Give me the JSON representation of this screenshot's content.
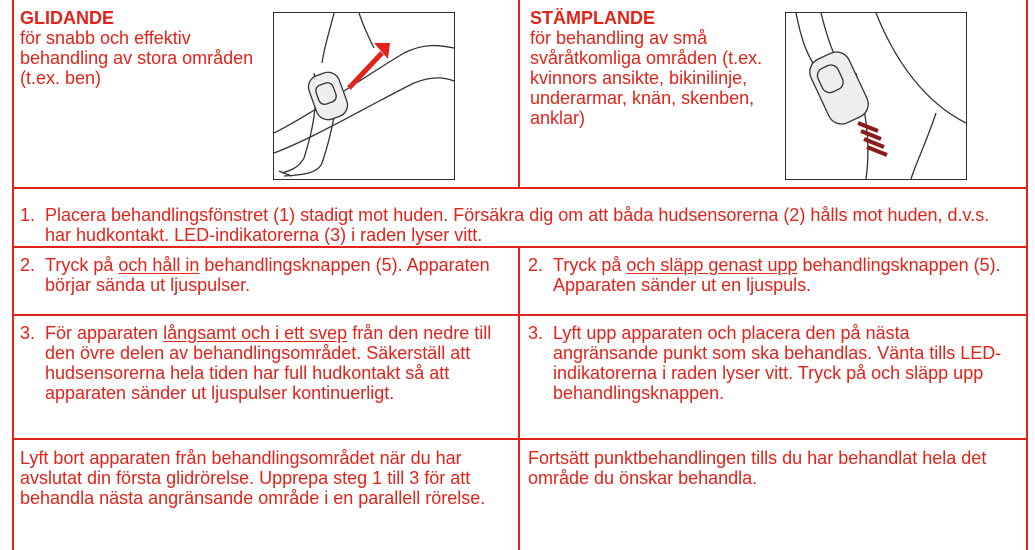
{
  "modes": [
    {
      "title": "GLIDANDE",
      "description": "för snabb och effektiv behandling av stora områden (t.ex. ben)"
    },
    {
      "title": "STÄMPLANDE",
      "description": "för behandling av små svåråtkomliga områden (t.ex. kvinnors ansikte, bikinilinje, underarmar, knän, skenben, anklar)"
    }
  ],
  "common_step": {
    "number": "1.",
    "text": "Placera behandlingsfönstret (1) stadigt mot huden. Försäkra dig om att båda hudsensorerna (2) hålls mot huden, d.v.s. har hudkontakt. LED-indikatorerna (3) i raden lyser vitt."
  },
  "steps": [
    [
      {
        "number": "2.",
        "before": "Tryck på ",
        "underlined": "och håll in",
        "after": " behandlingsknappen (5). Apparaten börjar sända ut ljuspulser."
      },
      {
        "number": "2.",
        "before": "Tryck på ",
        "underlined": "och släpp genast upp",
        "after": " behandlings­knappen (5). Apparaten sänder ut en ljuspuls."
      }
    ],
    [
      {
        "number": "3.",
        "before": "För apparaten ",
        "underlined": "långsamt och i ett svep",
        "after": " från den nedre till den övre delen av behandlings­området. Säkerställ att hudsensorerna hela tiden har full hudkontakt så att apparaten sänder ut ljuspulser kontinuerligt."
      },
      {
        "number": "3.",
        "before": "Lyft upp apparaten och placera den på nästa angränsande punkt som ska behandlas. Vänta tills LED-indikatorerna i raden lyser vitt. Tryck på och släpp upp behandlingsknappen."
      }
    ]
  ],
  "closing": [
    "Lyft bort apparaten från behandlingsområdet när du har avslutat din första glidrörelse. Upprepa steg 1 till 3 för att behandla nästa angränsande område i en parallell rörelse.",
    "Fortsätt punktbehandlingen tills du har behandlat hela det område du önskar behandla."
  ]
}
